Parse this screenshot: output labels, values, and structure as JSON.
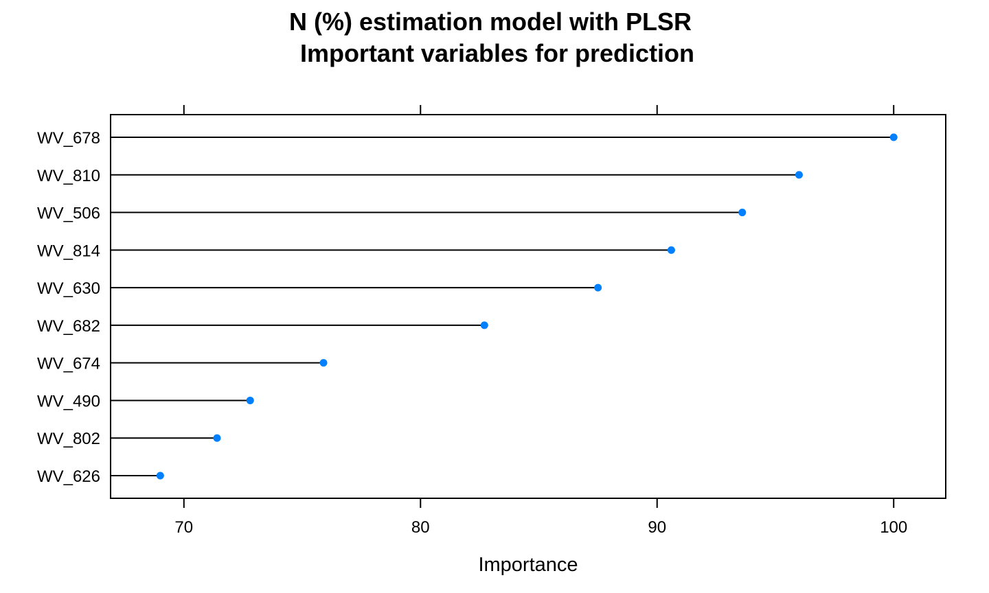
{
  "chart_data": {
    "type": "dot",
    "title_lines": [
      "N (%) estimation model with PLSR",
      "Important variables for prediction"
    ],
    "xlabel": "Importance",
    "ylabel": "",
    "xlim": [
      66.9,
      102.2
    ],
    "xticks": [
      70,
      80,
      90,
      100
    ],
    "xtick_labels": [
      "70",
      "80",
      "90",
      "100"
    ],
    "categories": [
      "WV_678",
      "WV_810",
      "WV_506",
      "WV_814",
      "WV_630",
      "WV_682",
      "WV_674",
      "WV_490",
      "WV_802",
      "WV_626"
    ],
    "values": [
      100.0,
      96.0,
      93.6,
      90.6,
      87.5,
      82.7,
      75.9,
      72.8,
      71.4,
      69.0
    ],
    "grid": false,
    "legend": "none",
    "point_color": "#0080FF",
    "line_color": "#000000"
  }
}
